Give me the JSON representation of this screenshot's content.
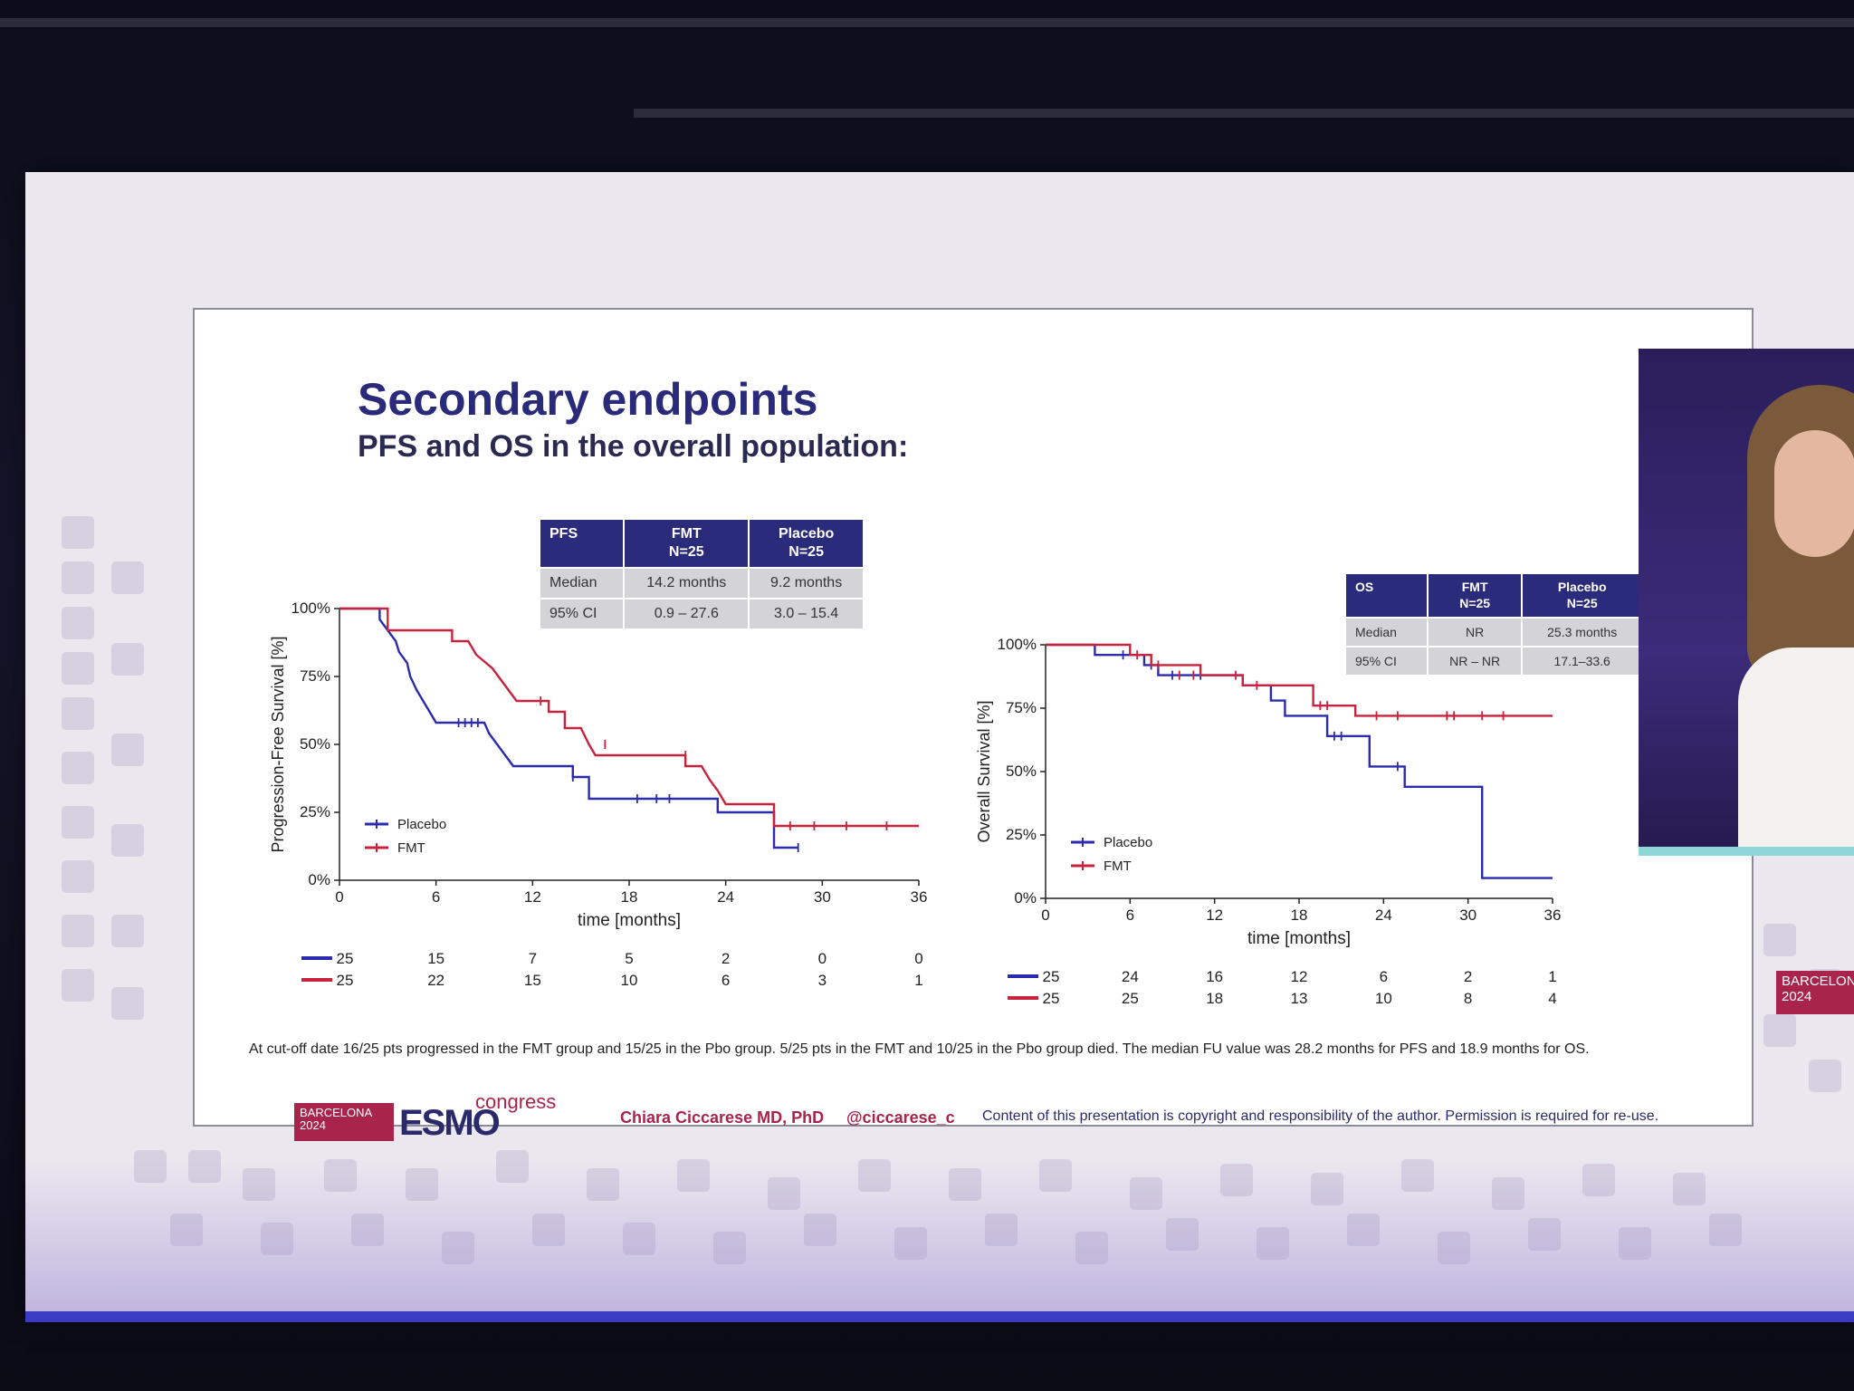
{
  "slide": {
    "title": "Secondary endpoints",
    "subtitle": "PFS and OS in the overall population:",
    "footnote": "At cut-off date 16/25 pts progressed in the FMT group and 15/25 in the Pbo group. 5/25 pts in the FMT and 10/25 in the Pbo group died. The median FU value was 28.2 months for PFS and 18.9 months for OS.",
    "author": "Chiara Ciccarese MD, PhD",
    "handle": "@ciccarese_c",
    "copyright": "Content of this presentation is copyright and responsibility of the author. Permission is required for re-use.",
    "logo": {
      "badge": "BARCELONA 2024",
      "brand": "ESMO",
      "suffix": "congress"
    },
    "side_badge": "BARCELON 2024"
  },
  "pfs_table": {
    "headers": [
      "PFS",
      "FMT\nN=25",
      "Placebo\nN=25"
    ],
    "rows": [
      [
        "Median",
        "14.2 months",
        "9.2 months"
      ],
      [
        "95% CI",
        "0.9 – 27.6",
        "3.0 – 15.4"
      ]
    ]
  },
  "os_table": {
    "headers": [
      "OS",
      "FMT\nN=25",
      "Placebo\nN=25"
    ],
    "rows": [
      [
        "Median",
        "NR",
        "25.3 months"
      ],
      [
        "95% CI",
        "NR – NR",
        "17.1–33.6"
      ]
    ]
  },
  "colors": {
    "placebo": "#2b2bb0",
    "fmt": "#c8223c",
    "title": "#2a2a7a",
    "accent": "#a8244a"
  },
  "chart_data": [
    {
      "type": "line",
      "step": true,
      "ylabel": "Progression-Free Survival [%]",
      "xlabel": "time [months]",
      "xlim": [
        0,
        36
      ],
      "ylim": [
        0,
        100
      ],
      "xticks": [
        0,
        6,
        12,
        18,
        24,
        30,
        36
      ],
      "ytick_labels": [
        "0%",
        "25%",
        "50%",
        "75%",
        "100%"
      ],
      "legend": "bottom-left",
      "series": [
        {
          "name": "Placebo",
          "color_key": "placebo",
          "points": [
            [
              0,
              100
            ],
            [
              2.5,
              100
            ],
            [
              2.5,
              96
            ],
            [
              3.0,
              92
            ],
            [
              3.5,
              88
            ],
            [
              3.7,
              84
            ],
            [
              4.2,
              80
            ],
            [
              4.4,
              75
            ],
            [
              4.8,
              70
            ],
            [
              5.2,
              66
            ],
            [
              5.6,
              62
            ],
            [
              6.0,
              58
            ],
            [
              9.0,
              58
            ],
            [
              9.3,
              54
            ],
            [
              9.8,
              50
            ],
            [
              10.3,
              46
            ],
            [
              10.8,
              42
            ],
            [
              14.5,
              42
            ],
            [
              14.5,
              38
            ],
            [
              15.5,
              38
            ],
            [
              15.5,
              30
            ],
            [
              22.5,
              30
            ],
            [
              23.5,
              30
            ],
            [
              23.5,
              25
            ],
            [
              27.0,
              25
            ],
            [
              27.0,
              12
            ],
            [
              28.5,
              12
            ]
          ],
          "censors": [
            [
              7.4,
              58
            ],
            [
              7.8,
              58
            ],
            [
              8.2,
              58
            ],
            [
              8.6,
              58
            ],
            [
              14.5,
              38
            ],
            [
              18.5,
              30
            ],
            [
              19.7,
              30
            ],
            [
              20.5,
              30
            ],
            [
              28.5,
              12
            ]
          ]
        },
        {
          "name": "FMT",
          "color_key": "fmt",
          "points": [
            [
              0,
              100
            ],
            [
              3.0,
              100
            ],
            [
              3.0,
              92
            ],
            [
              7.0,
              92
            ],
            [
              7.0,
              88
            ],
            [
              8.0,
              88
            ],
            [
              8.5,
              83
            ],
            [
              9.5,
              78
            ],
            [
              10.0,
              74
            ],
            [
              10.5,
              70
            ],
            [
              11.0,
              66
            ],
            [
              13.0,
              66
            ],
            [
              13.0,
              62
            ],
            [
              14.0,
              62
            ],
            [
              14.0,
              56
            ],
            [
              15.0,
              56
            ],
            [
              15.5,
              50
            ],
            [
              15.9,
              46
            ],
            [
              21.5,
              46
            ],
            [
              21.5,
              42
            ],
            [
              22.5,
              42
            ],
            [
              23.0,
              37
            ],
            [
              23.5,
              33
            ],
            [
              24.0,
              28
            ],
            [
              27.0,
              28
            ],
            [
              27.0,
              20
            ],
            [
              36,
              20
            ]
          ],
          "censors": [
            [
              12.5,
              66
            ],
            [
              16.5,
              50
            ],
            [
              21.5,
              46
            ],
            [
              28.0,
              20
            ],
            [
              29.5,
              20
            ],
            [
              31.5,
              20
            ],
            [
              34.0,
              20
            ]
          ]
        }
      ],
      "risk_table": {
        "times": [
          0,
          6,
          12,
          18,
          24,
          30,
          36
        ],
        "placebo": [
          25,
          15,
          7,
          5,
          2,
          0,
          0
        ],
        "fmt": [
          25,
          22,
          15,
          10,
          6,
          3,
          1
        ]
      }
    },
    {
      "type": "line",
      "step": true,
      "ylabel": "Overall Survival [%]",
      "xlabel": "time [months]",
      "xlim": [
        0,
        36
      ],
      "ylim": [
        0,
        100
      ],
      "xticks": [
        0,
        6,
        12,
        18,
        24,
        30,
        36
      ],
      "ytick_labels": [
        "0%",
        "25%",
        "50%",
        "75%",
        "100%"
      ],
      "legend": "bottom-left",
      "series": [
        {
          "name": "Placebo",
          "color_key": "placebo",
          "points": [
            [
              0,
              100
            ],
            [
              3.5,
              100
            ],
            [
              3.5,
              96
            ],
            [
              7.0,
              96
            ],
            [
              7.0,
              92
            ],
            [
              8.0,
              92
            ],
            [
              8.0,
              88
            ],
            [
              14.0,
              88
            ],
            [
              14.0,
              84
            ],
            [
              16.0,
              84
            ],
            [
              16.0,
              78
            ],
            [
              17.0,
              78
            ],
            [
              17.0,
              72
            ],
            [
              20.0,
              72
            ],
            [
              20.0,
              64
            ],
            [
              23.0,
              64
            ],
            [
              23.0,
              52
            ],
            [
              25.5,
              52
            ],
            [
              25.5,
              44
            ],
            [
              31.0,
              44
            ],
            [
              31.0,
              8
            ],
            [
              36,
              8
            ]
          ],
          "censors": [
            [
              5.5,
              96
            ],
            [
              7.5,
              92
            ],
            [
              9.0,
              88
            ],
            [
              11.0,
              88
            ],
            [
              20.5,
              64
            ],
            [
              21.0,
              64
            ],
            [
              25.0,
              52
            ]
          ]
        },
        {
          "name": "FMT",
          "color_key": "fmt",
          "points": [
            [
              0,
              100
            ],
            [
              6.0,
              100
            ],
            [
              6.0,
              96
            ],
            [
              7.5,
              96
            ],
            [
              7.5,
              92
            ],
            [
              11.0,
              92
            ],
            [
              11.0,
              88
            ],
            [
              14.0,
              88
            ],
            [
              14.0,
              84
            ],
            [
              19.0,
              84
            ],
            [
              19.0,
              76
            ],
            [
              22.0,
              76
            ],
            [
              22.0,
              72
            ],
            [
              36,
              72
            ]
          ],
          "censors": [
            [
              6.5,
              96
            ],
            [
              8.0,
              92
            ],
            [
              9.5,
              88
            ],
            [
              10.5,
              88
            ],
            [
              13.5,
              88
            ],
            [
              15.0,
              84
            ],
            [
              19.5,
              76
            ],
            [
              20.0,
              76
            ],
            [
              23.5,
              72
            ],
            [
              25.0,
              72
            ],
            [
              28.5,
              72
            ],
            [
              29.0,
              72
            ],
            [
              31.0,
              72
            ],
            [
              32.5,
              72
            ]
          ]
        }
      ],
      "risk_table": {
        "times": [
          0,
          6,
          12,
          18,
          24,
          30,
          36
        ],
        "placebo": [
          25,
          24,
          16,
          12,
          6,
          2,
          1
        ],
        "fmt": [
          25,
          25,
          18,
          13,
          10,
          8,
          4
        ]
      }
    }
  ]
}
